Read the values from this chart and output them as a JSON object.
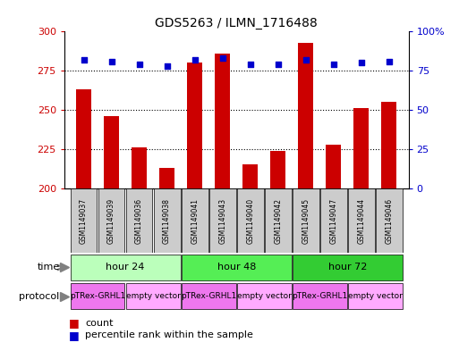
{
  "title": "GDS5263 / ILMN_1716488",
  "samples": [
    "GSM1149037",
    "GSM1149039",
    "GSM1149036",
    "GSM1149038",
    "GSM1149041",
    "GSM1149043",
    "GSM1149040",
    "GSM1149042",
    "GSM1149045",
    "GSM1149047",
    "GSM1149044",
    "GSM1149046"
  ],
  "counts": [
    263,
    246,
    226,
    213,
    280,
    286,
    215,
    224,
    293,
    228,
    251,
    255
  ],
  "percentile": [
    82,
    81,
    79,
    78,
    82,
    83,
    79,
    79,
    82,
    79,
    80,
    81
  ],
  "ylim_left": [
    200,
    300
  ],
  "ylim_right": [
    0,
    100
  ],
  "yticks_left": [
    200,
    225,
    250,
    275,
    300
  ],
  "yticks_right": [
    0,
    25,
    50,
    75,
    100
  ],
  "time_groups": [
    {
      "label": "hour 24",
      "start": 0,
      "end": 4,
      "color": "#bbffbb"
    },
    {
      "label": "hour 48",
      "start": 4,
      "end": 8,
      "color": "#55ee55"
    },
    {
      "label": "hour 72",
      "start": 8,
      "end": 12,
      "color": "#33cc33"
    }
  ],
  "protocol_groups": [
    {
      "label": "pTRex-GRHL1",
      "start": 0,
      "end": 2,
      "color": "#ee77ee"
    },
    {
      "label": "empty vector",
      "start": 2,
      "end": 4,
      "color": "#ffaaff"
    },
    {
      "label": "pTRex-GRHL1",
      "start": 4,
      "end": 6,
      "color": "#ee77ee"
    },
    {
      "label": "empty vector",
      "start": 6,
      "end": 8,
      "color": "#ffaaff"
    },
    {
      "label": "pTRex-GRHL1",
      "start": 8,
      "end": 10,
      "color": "#ee77ee"
    },
    {
      "label": "empty vector",
      "start": 10,
      "end": 12,
      "color": "#ffaaff"
    }
  ],
  "bar_color": "#cc0000",
  "dot_color": "#0000cc",
  "bar_width": 0.55,
  "background_color": "#ffffff",
  "tick_label_color_left": "#cc0000",
  "tick_label_color_right": "#0000cc",
  "sample_bg_color": "#cccccc",
  "legend_items": [
    {
      "color": "#cc0000",
      "label": "count"
    },
    {
      "color": "#0000cc",
      "label": "percentile rank within the sample"
    }
  ]
}
